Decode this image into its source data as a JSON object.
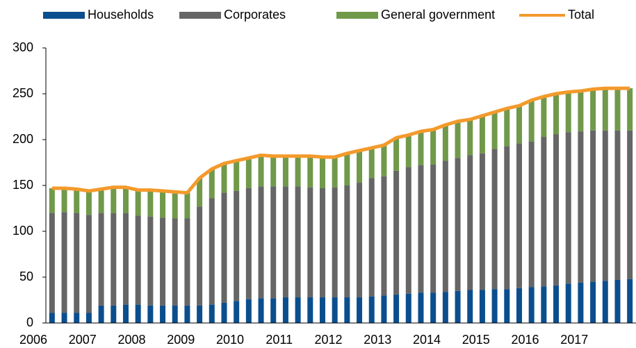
{
  "chart_data": {
    "type": "bar",
    "stacked": true,
    "categories": [
      "2006",
      null,
      null,
      null,
      "2007",
      null,
      null,
      null,
      "2008",
      null,
      null,
      null,
      "2009",
      null,
      null,
      null,
      "2010",
      null,
      null,
      null,
      "2011",
      null,
      null,
      null,
      "2012",
      null,
      null,
      null,
      "2013",
      null,
      null,
      null,
      "2014",
      null,
      null,
      null,
      "2015",
      null,
      null,
      null,
      "2016",
      null,
      null,
      null,
      "2017",
      null,
      null,
      null
    ],
    "series": [
      {
        "name": "Households",
        "color": "#0b4e8e",
        "values": [
          11,
          11,
          11,
          11,
          19,
          19,
          20,
          20,
          19,
          19,
          19,
          19,
          19,
          20,
          22,
          24,
          26,
          27,
          27,
          28,
          28,
          28,
          28,
          28,
          28,
          28,
          29,
          30,
          31,
          32,
          33,
          33,
          34,
          35,
          36,
          36,
          37,
          37,
          38,
          39,
          40,
          41,
          43,
          44,
          45,
          46,
          47,
          48
        ]
      },
      {
        "name": "Corporates",
        "color": "#666666",
        "values": [
          109,
          110,
          109,
          107,
          101,
          101,
          100,
          97,
          97,
          96,
          95,
          95,
          108,
          116,
          120,
          120,
          121,
          122,
          122,
          121,
          121,
          120,
          119,
          120,
          122,
          125,
          129,
          130,
          135,
          138,
          139,
          140,
          143,
          145,
          147,
          149,
          153,
          156,
          158,
          159,
          163,
          165,
          165,
          165,
          165,
          164,
          163,
          162
        ]
      },
      {
        "name": "General government",
        "color": "#70994a",
        "values": [
          27,
          26,
          26,
          26,
          26,
          28,
          28,
          28,
          29,
          29,
          29,
          28,
          31,
          32,
          32,
          33,
          33,
          34,
          33,
          33,
          33,
          34,
          34,
          33,
          35,
          35,
          33,
          34,
          36,
          35,
          37,
          38,
          39,
          40,
          39,
          41,
          40,
          41,
          41,
          45,
          44,
          44,
          44,
          44,
          45,
          46,
          46,
          46
        ]
      },
      {
        "name": "Total",
        "color": "#f39a2c",
        "type": "line",
        "values": [
          147,
          147,
          146,
          144,
          146,
          148,
          148,
          145,
          145,
          144,
          143,
          142,
          158,
          168,
          174,
          177,
          180,
          183,
          182,
          182,
          182,
          182,
          181,
          181,
          185,
          188,
          191,
          194,
          202,
          205,
          209,
          211,
          216,
          220,
          222,
          226,
          230,
          234,
          237,
          243,
          247,
          250,
          252,
          253,
          255,
          256,
          256,
          256
        ]
      }
    ],
    "ylim": [
      0,
      300
    ],
    "yticks": [
      0,
      50,
      100,
      150,
      200,
      250,
      300
    ],
    "grid": false,
    "legend": "top"
  }
}
